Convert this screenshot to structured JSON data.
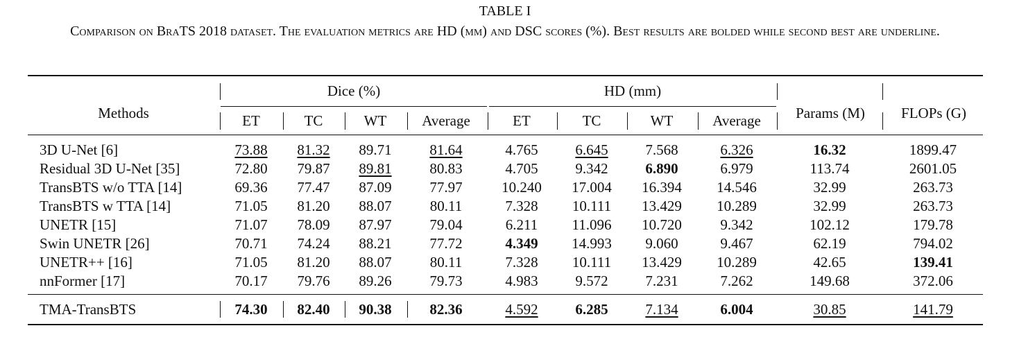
{
  "table": {
    "label": "TABLE I",
    "caption": "Comparison on BraTS 2018 dataset. The evaluation metrics are HD (mm) and DSC scores (%). Best results are bolded while second best are underline.",
    "header": {
      "methods": "Methods",
      "dice_group": "Dice (%)",
      "hd_group": "HD (mm)",
      "params": "Params (M)",
      "flops": "FLOPs (G)",
      "sub": [
        "ET",
        "TC",
        "WT",
        "Average",
        "ET",
        "TC",
        "WT",
        "Average"
      ]
    },
    "rows": [
      {
        "method": "3D U-Net [6]",
        "values": [
          "73.88",
          "81.32",
          "89.71",
          "81.64",
          "4.765",
          "6.645",
          "7.568",
          "6.326",
          "16.32",
          "1899.47"
        ]
      },
      {
        "method": "Residual 3D U-Net [35]",
        "values": [
          "72.80",
          "79.87",
          "89.81",
          "80.83",
          "4.705",
          "9.342",
          "6.890",
          "6.979",
          "113.74",
          "2601.05"
        ]
      },
      {
        "method": "TransBTS w/o TTA [14]",
        "values": [
          "69.36",
          "77.47",
          "87.09",
          "77.97",
          "10.240",
          "17.004",
          "16.394",
          "14.546",
          "32.99",
          "263.73"
        ]
      },
      {
        "method": "TransBTS w TTA [14]",
        "values": [
          "71.05",
          "81.20",
          "88.07",
          "80.11",
          "7.328",
          "10.111",
          "13.429",
          "10.289",
          "32.99",
          "263.73"
        ]
      },
      {
        "method": "UNETR [15]",
        "values": [
          "71.07",
          "78.09",
          "87.97",
          "79.04",
          "6.211",
          "11.096",
          "10.720",
          "9.342",
          "102.12",
          "179.78"
        ]
      },
      {
        "method": "Swin UNETR [26]",
        "values": [
          "70.71",
          "74.24",
          "88.21",
          "77.72",
          "4.349",
          "14.993",
          "9.060",
          "9.467",
          "62.19",
          "794.02"
        ]
      },
      {
        "method": "UNETR++ [16]",
        "values": [
          "71.05",
          "81.20",
          "88.07",
          "80.11",
          "7.328",
          "10.111",
          "13.429",
          "10.289",
          "42.65",
          "139.41"
        ]
      },
      {
        "method": "nnFormer [17]",
        "values": [
          "70.17",
          "79.76",
          "89.26",
          "79.73",
          "4.983",
          "9.572",
          "7.231",
          "7.262",
          "149.68",
          "372.06"
        ]
      }
    ],
    "final_row": {
      "method": "TMA-TransBTS",
      "values": [
        "74.30",
        "82.40",
        "90.38",
        "82.36",
        "4.592",
        "6.285",
        "7.134",
        "6.004",
        "30.85",
        "141.79"
      ]
    }
  }
}
